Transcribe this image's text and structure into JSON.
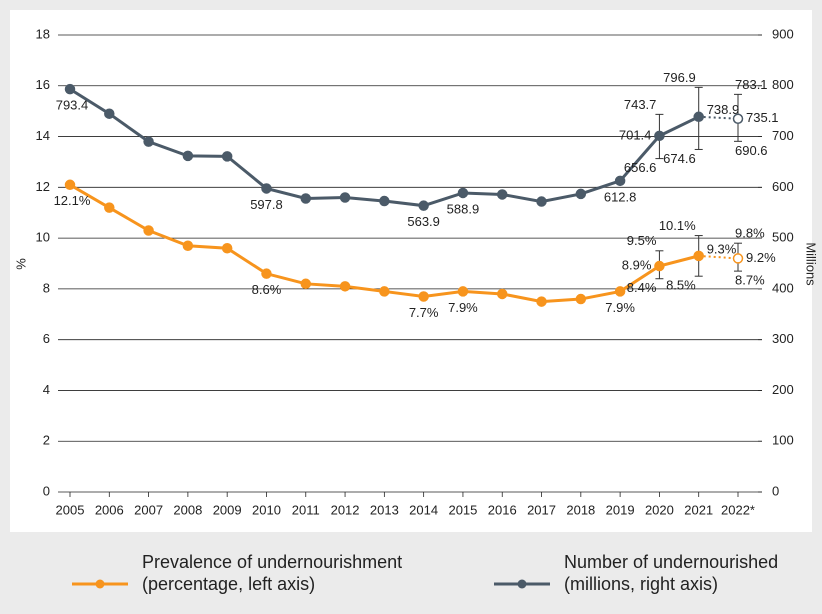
{
  "chart_data": {
    "type": "line",
    "categories": [
      "2005",
      "2006",
      "2007",
      "2008",
      "2009",
      "2010",
      "2011",
      "2012",
      "2013",
      "2014",
      "2015",
      "2016",
      "2017",
      "2018",
      "2019",
      "2020",
      "2021",
      "2022*"
    ],
    "ylabel": "%",
    "y2label": "Millions",
    "ylim": [
      0,
      18
    ],
    "yticks": [
      0,
      2,
      4,
      6,
      8,
      10,
      12,
      14,
      16,
      18
    ],
    "y2lim": [
      0,
      900
    ],
    "y2ticks": [
      0,
      100,
      200,
      300,
      400,
      500,
      600,
      700,
      800,
      900
    ],
    "grid": true,
    "last_segment_dashed": true,
    "legend": "bottom",
    "series": [
      {
        "name": "Prevalence of undernourishment\n(percentage, left axis)",
        "color": "#f7941d",
        "values": [
          12.1,
          11.2,
          10.3,
          9.7,
          9.6,
          8.6,
          8.2,
          8.1,
          7.9,
          7.7,
          7.9,
          7.8,
          7.5,
          7.6,
          7.9,
          8.9,
          9.3,
          9.2
        ],
        "value_labels": [
          "12.1%",
          null,
          null,
          null,
          null,
          "8.6%",
          null,
          null,
          null,
          "7.7%",
          "7.9%",
          null,
          null,
          null,
          "7.9%",
          "8.9%",
          "9.3%",
          "9.2%"
        ],
        "error_low": [
          null,
          null,
          null,
          null,
          null,
          null,
          null,
          null,
          null,
          null,
          null,
          null,
          null,
          null,
          null,
          8.4,
          8.5,
          8.7
        ],
        "error_high": [
          null,
          null,
          null,
          null,
          null,
          null,
          null,
          null,
          null,
          null,
          null,
          null,
          null,
          null,
          null,
          9.5,
          10.1,
          9.8
        ],
        "error_low_labels": [
          null,
          null,
          null,
          null,
          null,
          null,
          null,
          null,
          null,
          null,
          null,
          null,
          null,
          null,
          null,
          "8.4%",
          "8.5%",
          "8.7%"
        ],
        "error_high_labels": [
          null,
          null,
          null,
          null,
          null,
          null,
          null,
          null,
          null,
          null,
          null,
          null,
          null,
          null,
          null,
          "9.5%",
          "10.1%",
          "9.8%"
        ]
      },
      {
        "name": "Number of undernourished\n(millions, right axis)",
        "color": "#4b5a68",
        "axis": "y2",
        "values": [
          793.4,
          745,
          690,
          662,
          661,
          597.8,
          578,
          580,
          573,
          563.9,
          588.9,
          586,
          572,
          587,
          612.8,
          701.4,
          738.9,
          735.1
        ],
        "value_labels": [
          "793.4",
          null,
          null,
          null,
          null,
          "597.8",
          null,
          null,
          null,
          "563.9",
          "588.9",
          null,
          null,
          null,
          "612.8",
          "701.4",
          "738.9",
          "735.1"
        ],
        "error_low": [
          null,
          null,
          null,
          null,
          null,
          null,
          null,
          null,
          null,
          null,
          null,
          null,
          null,
          null,
          null,
          656.6,
          674.6,
          690.6
        ],
        "error_high": [
          null,
          null,
          null,
          null,
          null,
          null,
          null,
          null,
          null,
          null,
          null,
          null,
          null,
          null,
          null,
          743.7,
          796.9,
          783.1
        ],
        "error_low_labels": [
          null,
          null,
          null,
          null,
          null,
          null,
          null,
          null,
          null,
          null,
          null,
          null,
          null,
          null,
          null,
          "656.6",
          "674.6",
          "690.6"
        ],
        "error_high_labels": [
          null,
          null,
          null,
          null,
          null,
          null,
          null,
          null,
          null,
          null,
          null,
          null,
          null,
          null,
          null,
          "743.7",
          "796.9",
          "783.1"
        ]
      }
    ]
  }
}
